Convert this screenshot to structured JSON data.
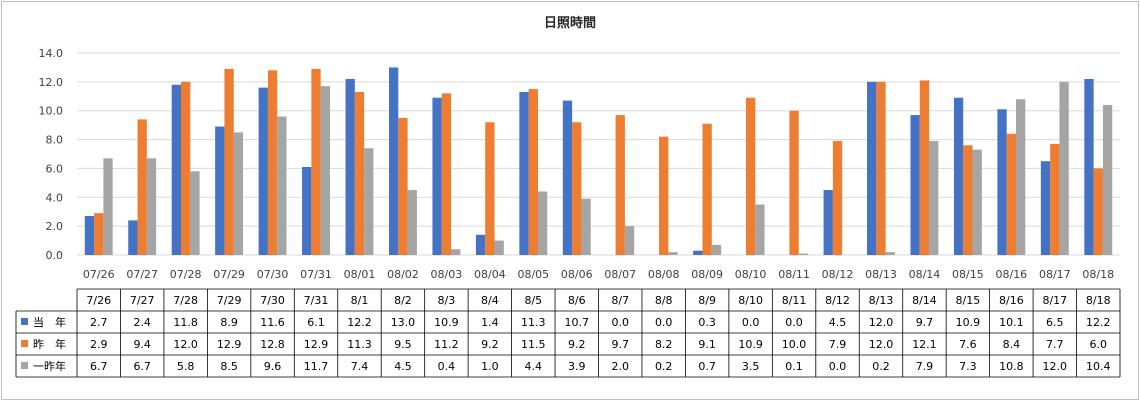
{
  "chart_data": {
    "type": "bar",
    "title": "日照時間",
    "categories": [
      "07/26",
      "07/27",
      "07/28",
      "07/29",
      "07/30",
      "07/31",
      "08/01",
      "08/02",
      "08/03",
      "08/04",
      "08/05",
      "08/06",
      "08/07",
      "08/08",
      "08/09",
      "08/10",
      "08/11",
      "08/12",
      "08/13",
      "08/14",
      "08/15",
      "08/16",
      "08/17",
      "08/18"
    ],
    "table_categories": [
      "7/26",
      "7/27",
      "7/28",
      "7/29",
      "7/30",
      "7/31",
      "8/1",
      "8/2",
      "8/3",
      "8/4",
      "8/5",
      "8/6",
      "8/7",
      "8/8",
      "8/9",
      "8/10",
      "8/11",
      "8/12",
      "8/13",
      "8/14",
      "8/15",
      "8/16",
      "8/17",
      "8/18"
    ],
    "ylim": [
      0,
      14
    ],
    "yticks": [
      "0.0",
      "2.0",
      "4.0",
      "6.0",
      "8.0",
      "10.0",
      "12.0",
      "14.0"
    ],
    "grid": true,
    "legend": "data-table",
    "series": [
      {
        "name": "当　年",
        "color": "#4472c4",
        "values": [
          2.7,
          2.4,
          11.8,
          8.9,
          11.6,
          6.1,
          12.2,
          13.0,
          10.9,
          1.4,
          11.3,
          10.7,
          0.0,
          0.0,
          0.3,
          0.0,
          0.0,
          4.5,
          12.0,
          9.7,
          10.9,
          10.1,
          6.5,
          12.2
        ]
      },
      {
        "name": "昨　年",
        "color": "#ed7d31",
        "values": [
          2.9,
          9.4,
          12.0,
          12.9,
          12.8,
          12.9,
          11.3,
          9.5,
          11.2,
          9.2,
          11.5,
          9.2,
          9.7,
          8.2,
          9.1,
          10.9,
          10.0,
          7.9,
          12.0,
          12.1,
          7.6,
          8.4,
          7.7,
          6.0
        ]
      },
      {
        "name": "一昨年",
        "color": "#a5a5a5",
        "values": [
          6.7,
          6.7,
          5.8,
          8.5,
          9.6,
          11.7,
          7.4,
          4.5,
          0.4,
          1.0,
          4.4,
          3.9,
          2.0,
          0.2,
          0.7,
          3.5,
          0.1,
          0.0,
          0.2,
          7.9,
          7.3,
          10.8,
          12.0,
          10.4
        ]
      }
    ]
  }
}
